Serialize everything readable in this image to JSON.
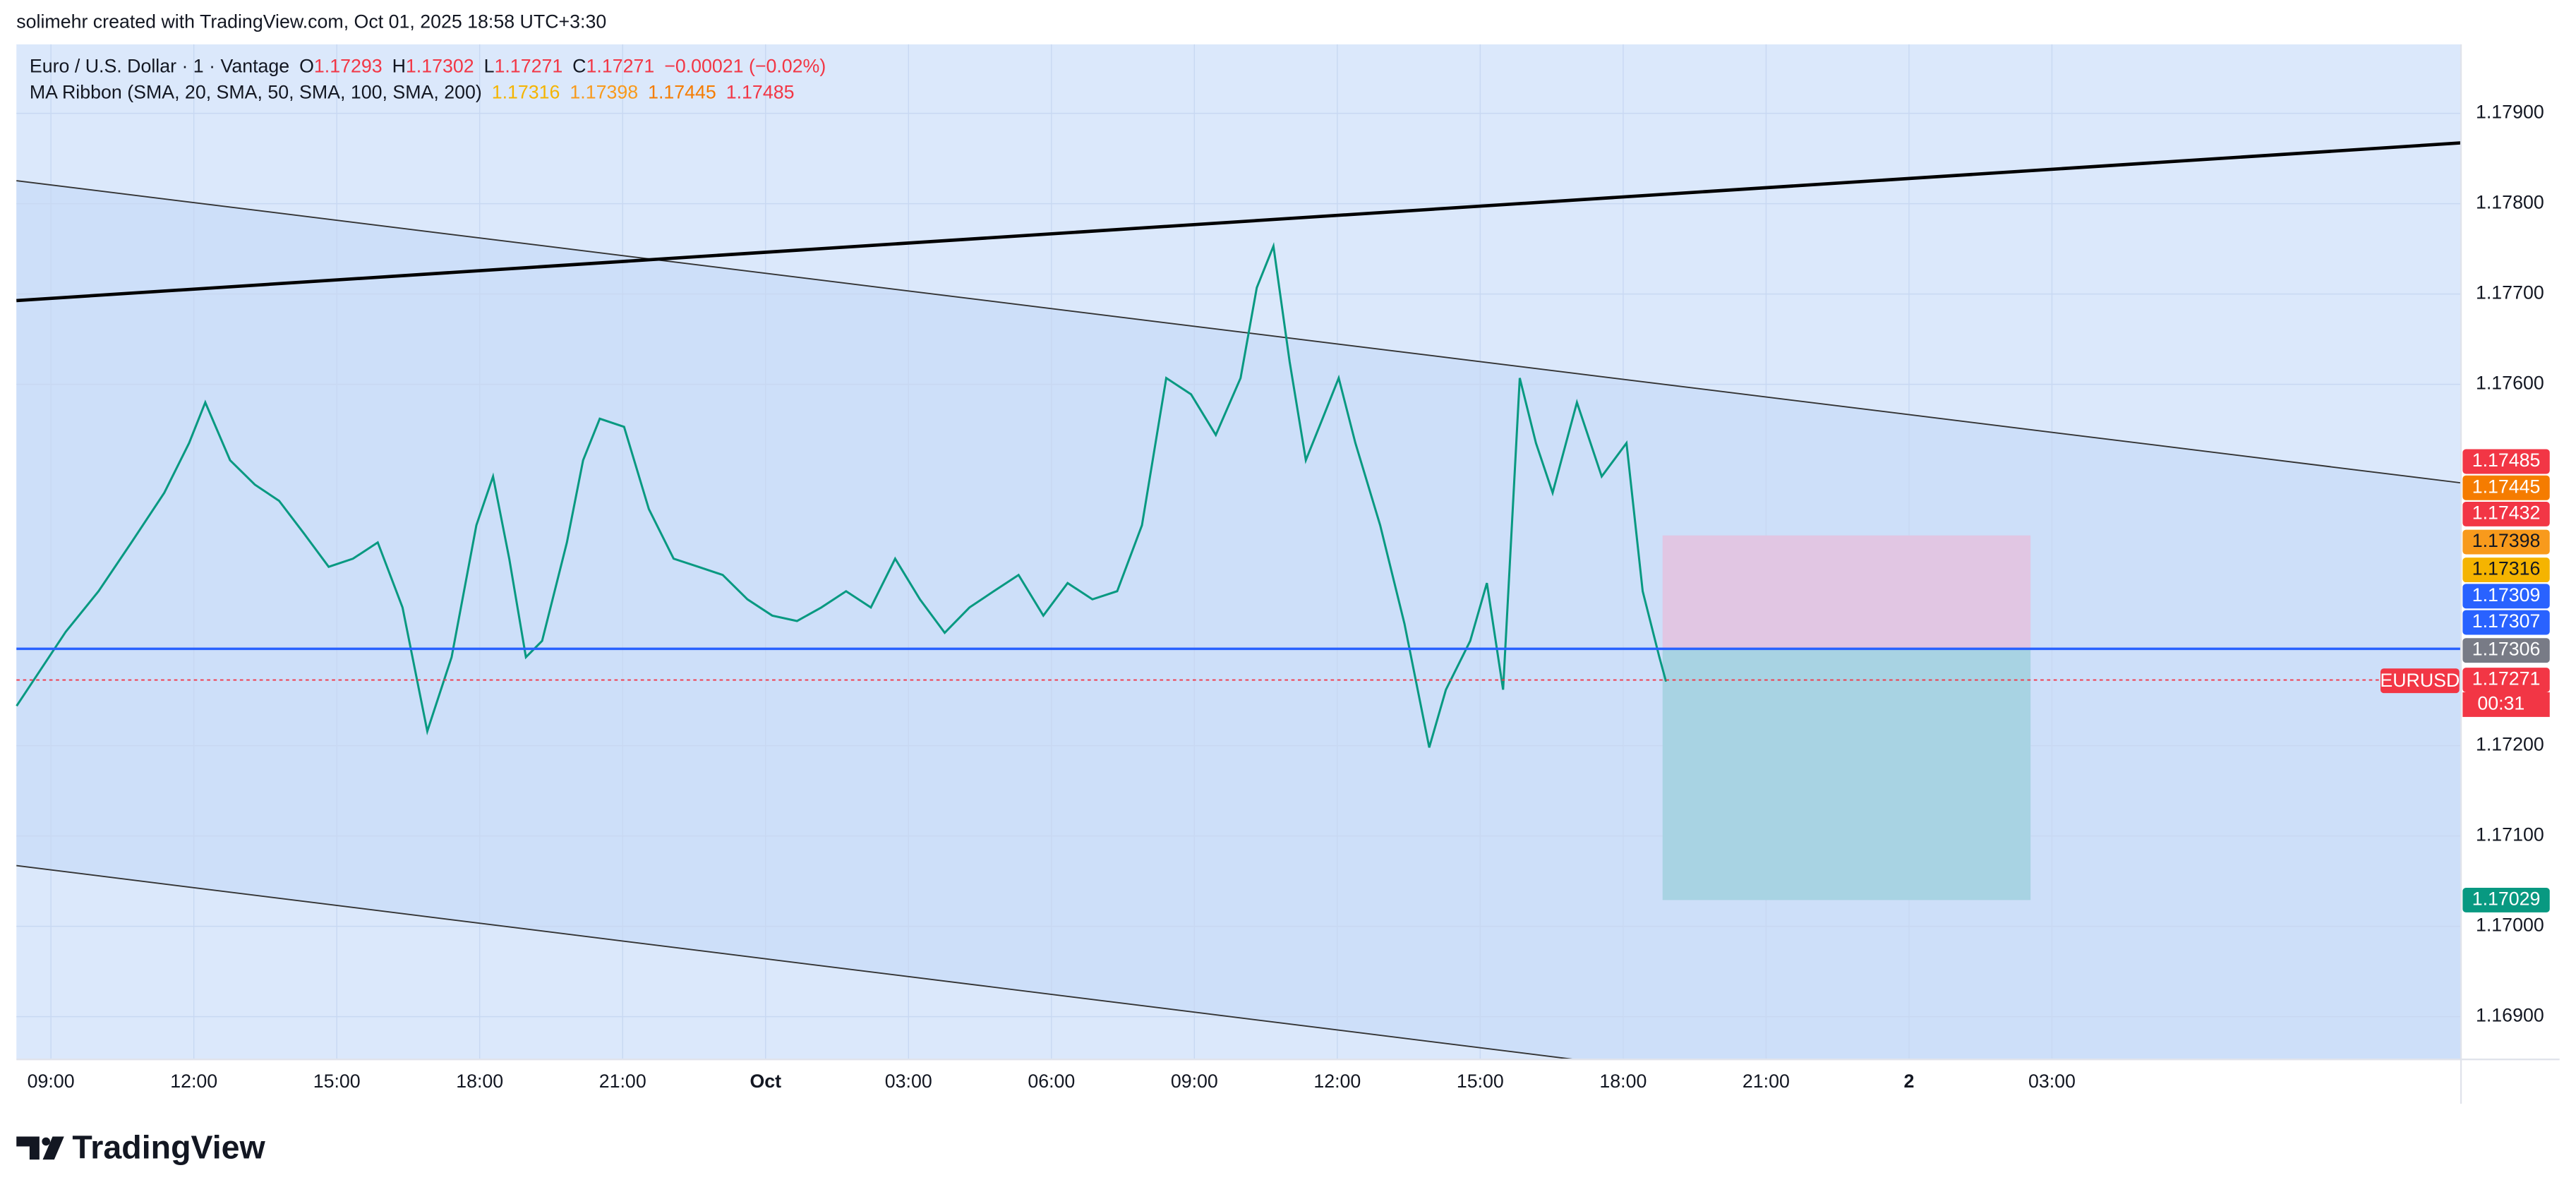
{
  "header": {
    "attribution": "solimehr created with TradingView.com, Oct 01, 2025 18:58 UTC+3:30"
  },
  "legend": {
    "symbol": "Euro / U.S. Dollar · 1 · Vantage",
    "ohlc": [
      {
        "key": "O",
        "value": "1.17293"
      },
      {
        "key": "H",
        "value": "1.17302"
      },
      {
        "key": "L",
        "value": "1.17271"
      },
      {
        "key": "C",
        "value": "1.17271"
      }
    ],
    "change": "−0.00021 (−0.02%)",
    "indicator": "MA Ribbon (SMA, 20, SMA, 50, SMA, 100, SMA, 200)",
    "indicator_values": [
      {
        "text": "1.17316",
        "color": "#f5b400"
      },
      {
        "text": "1.17398",
        "color": "#f89a1c"
      },
      {
        "text": "1.17445",
        "color": "#f57c00"
      },
      {
        "text": "1.17485",
        "color": "#f23645"
      }
    ]
  },
  "chart_data": {
    "type": "line",
    "color": "#089981",
    "x": [
      8.28,
      9.31,
      10.0,
      10.69,
      11.38,
      11.9,
      12.24,
      12.76,
      13.28,
      13.79,
      14.31,
      14.83,
      15.34,
      15.86,
      16.38,
      16.9,
      17.41,
      17.93,
      18.28,
      18.62,
      18.97,
      19.31,
      19.83,
      20.17,
      20.52,
      21.03,
      21.55,
      22.07,
      22.59,
      23.1,
      23.62,
      24.14,
      24.66,
      25.17,
      25.69,
      26.21,
      26.72,
      27.24,
      27.76,
      28.28,
      28.79,
      29.31,
      29.83,
      30.34,
      30.86,
      31.38,
      31.9,
      32.41,
      32.93,
      33.45,
      33.97,
      34.31,
      34.66,
      35.0,
      35.34,
      35.69,
      36.03,
      36.38,
      36.9,
      37.41,
      37.93,
      38.28,
      38.79,
      39.14,
      39.48,
      39.83,
      40.17,
      40.52,
      41.03,
      41.55,
      42.07,
      42.41,
      42.76,
      42.9
    ],
    "values": [
      1.17244,
      1.17326,
      1.17371,
      1.17425,
      1.1748,
      1.17535,
      1.1758,
      1.17516,
      1.17489,
      1.17471,
      1.17435,
      1.17398,
      1.17407,
      1.17425,
      1.17353,
      1.17216,
      1.17298,
      1.17444,
      1.17498,
      1.17407,
      1.17298,
      1.17316,
      1.17425,
      1.17516,
      1.17562,
      1.17553,
      1.17462,
      1.17407,
      1.17398,
      1.17389,
      1.17362,
      1.17344,
      1.17338,
      1.17353,
      1.17371,
      1.17353,
      1.17407,
      1.17362,
      1.17325,
      1.17353,
      1.17371,
      1.17389,
      1.17344,
      1.1738,
      1.17362,
      1.17371,
      1.17444,
      1.17607,
      1.17589,
      1.17544,
      1.17607,
      1.17707,
      1.17753,
      1.17625,
      1.17516,
      1.17562,
      1.17607,
      1.17535,
      1.17444,
      1.17335,
      1.17198,
      1.17262,
      1.17316,
      1.1738,
      1.17262,
      1.17607,
      1.17535,
      1.1748,
      1.1758,
      1.17498,
      1.17535,
      1.17371,
      1.17298,
      1.17271
    ],
    "xlim": [
      8.276,
      59.586
    ],
    "xticks": [
      {
        "value": 9,
        "label": "09:00"
      },
      {
        "value": 12,
        "label": "12:00"
      },
      {
        "value": 15,
        "label": "15:00"
      },
      {
        "value": 18,
        "label": "18:00"
      },
      {
        "value": 21,
        "label": "21:00"
      },
      {
        "value": 24,
        "label": "Oct"
      },
      {
        "value": 27,
        "label": "03:00"
      },
      {
        "value": 30,
        "label": "06:00"
      },
      {
        "value": 33,
        "label": "09:00"
      },
      {
        "value": 36,
        "label": "12:00"
      },
      {
        "value": 39,
        "label": "15:00"
      },
      {
        "value": 42,
        "label": "18:00"
      },
      {
        "value": 45,
        "label": "21:00"
      },
      {
        "value": 48,
        "label": "2"
      },
      {
        "value": 51,
        "label": "03:00"
      }
    ],
    "ylim": [
      1.168527,
      1.179764
    ],
    "yticks": [
      {
        "value": 1.169,
        "label": "1.16900"
      },
      {
        "value": 1.17,
        "label": "1.17000"
      },
      {
        "value": 1.171,
        "label": "1.17100"
      },
      {
        "value": 1.172,
        "label": "1.17200"
      },
      {
        "value": 1.176,
        "label": "1.17600"
      },
      {
        "value": 1.177,
        "label": "1.17700"
      },
      {
        "value": 1.178,
        "label": "1.17800"
      },
      {
        "value": 1.179,
        "label": "1.17900"
      }
    ],
    "grid": true
  },
  "price_labels": [
    {
      "text": "1.17485",
      "color": "#f23645",
      "ink": "#ffffff"
    },
    {
      "text": "1.17445",
      "color": "#f57c00",
      "ink": "#ffffff"
    },
    {
      "text": "1.17432",
      "color": "#f23645",
      "ink": "#ffffff"
    },
    {
      "text": "1.17398",
      "color": "#f89a1c",
      "ink": "#131722"
    },
    {
      "text": "1.17316",
      "color": "#f5b400",
      "ink": "#131722"
    },
    {
      "text": "1.17309",
      "color": "#2962ff",
      "ink": "#ffffff"
    },
    {
      "text": "1.17307",
      "color": "#2962ff",
      "ink": "#ffffff"
    },
    {
      "text": "1.17306",
      "color": "#787b86",
      "ink": "#ffffff"
    },
    {
      "text": "1.17271",
      "color": "#f23645",
      "ink": "#ffffff"
    },
    {
      "text": "1.17029",
      "color": "#089981",
      "ink": "#ffffff"
    }
  ],
  "symbol_tag": "EURUSD",
  "countdown": "00:31",
  "footer": {
    "logo": "TradingView"
  }
}
